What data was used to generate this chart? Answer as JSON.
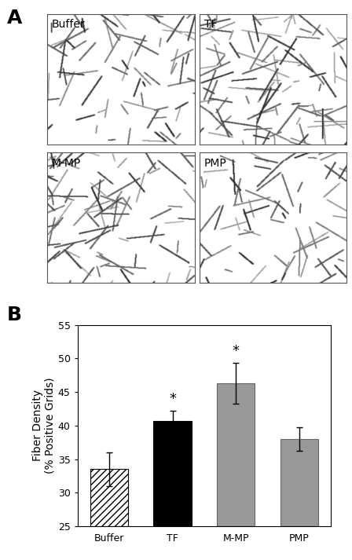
{
  "bar_categories": [
    "Buffer",
    "TF",
    "M-MP",
    "PMP"
  ],
  "bar_values": [
    33.5,
    40.7,
    46.3,
    38.0
  ],
  "bar_errors": [
    2.5,
    1.5,
    3.0,
    1.8
  ],
  "bar_colors": [
    "white",
    "black",
    "#999999",
    "#999999"
  ],
  "bar_hatches": [
    "////",
    "",
    "",
    ""
  ],
  "bar_edgecolors": [
    "black",
    "black",
    "#666666",
    "#666666"
  ],
  "significance": [
    false,
    true,
    true,
    false
  ],
  "ylabel": "Fiber Density\n(% Positive Grids)",
  "ylim": [
    25,
    55
  ],
  "yticks": [
    25,
    30,
    35,
    40,
    45,
    50,
    55
  ],
  "label_A_fontsize": 18,
  "label_B_fontsize": 18,
  "tick_fontsize": 9,
  "axis_label_fontsize": 10,
  "sig_marker": "*",
  "sig_fontsize": 13,
  "background_color": "#ffffff",
  "image_labels": [
    "Buffer",
    "TF",
    "M-MP",
    "PMP"
  ],
  "img_fiber_counts": [
    80,
    120,
    110,
    75
  ],
  "img_seeds": [
    10,
    20,
    30,
    40
  ]
}
